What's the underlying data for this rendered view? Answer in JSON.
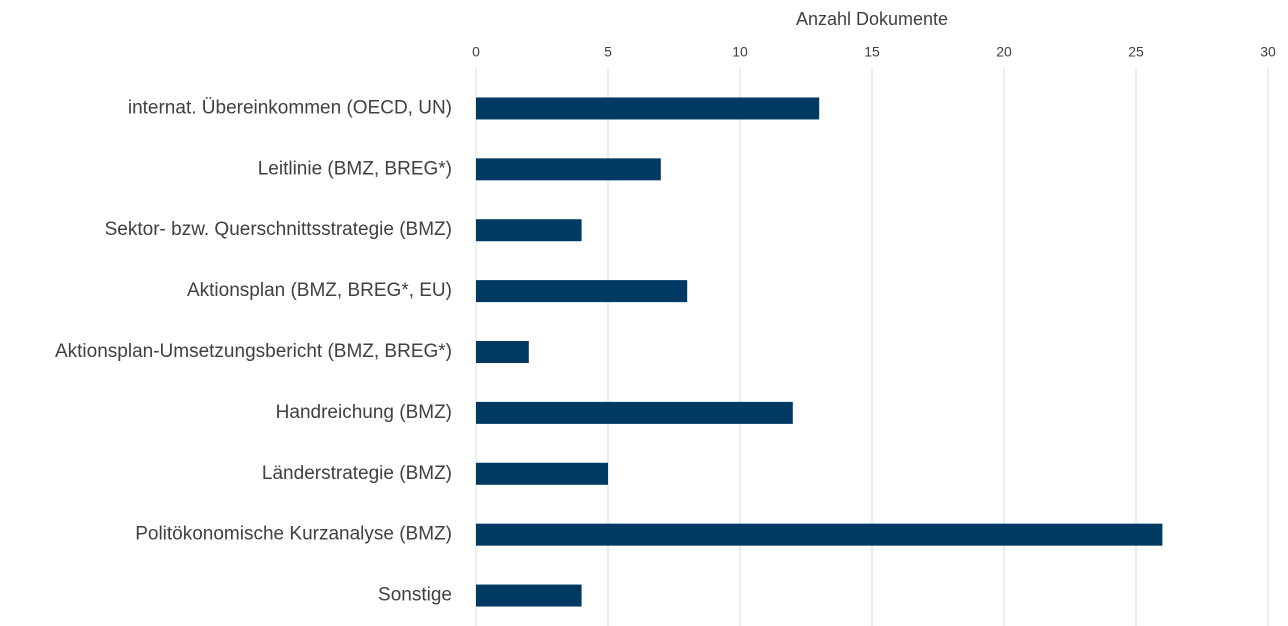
{
  "chart_data": {
    "type": "bar",
    "orientation": "horizontal",
    "xlabel": "Anzahl Dokumente",
    "categories": [
      "internat. Übereinkommen (OECD, UN)",
      "Leitlinie (BMZ, BREG*)",
      "Sektor- bzw. Querschnittsstrategie (BMZ)",
      "Aktionsplan (BMZ, BREG*, EU)",
      "Aktionsplan-Umsetzungsbericht (BMZ, BREG*)",
      "Handreichung (BMZ)",
      "Länderstrategie (BMZ)",
      "Politökonomische Kurzanalyse (BMZ)",
      "Sonstige"
    ],
    "values": [
      13,
      7,
      4,
      8,
      2,
      12,
      5,
      26,
      4
    ],
    "color": "#003a63",
    "xlim": [
      0,
      30
    ],
    "xticks": [
      0,
      5,
      10,
      15,
      20,
      25,
      30
    ],
    "grid": true
  }
}
